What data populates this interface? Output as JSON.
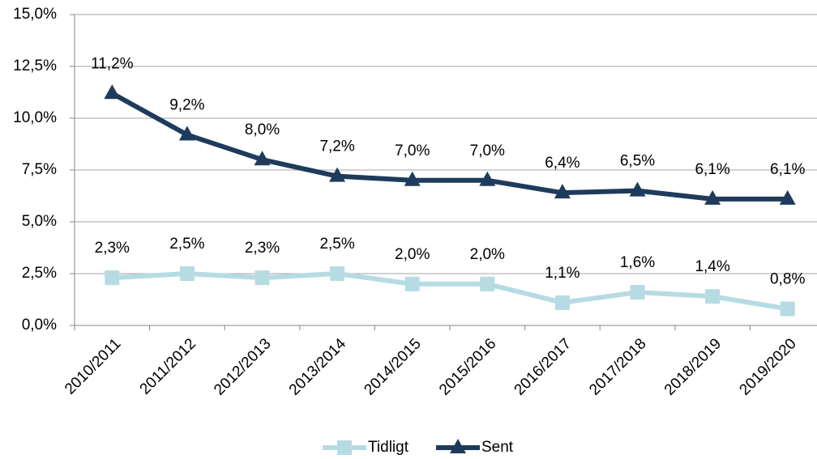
{
  "chart_data": {
    "type": "line",
    "categories": [
      "2010/2011",
      "2011/2012",
      "2012/2013",
      "2013/2014",
      "2014/2015",
      "2015/2016",
      "2016/2017",
      "2017/2018",
      "2018/2019",
      "2019/2020"
    ],
    "series": [
      {
        "name": "Tidligt",
        "color": "#b7dbe3",
        "marker": "square",
        "values": [
          2.3,
          2.5,
          2.3,
          2.5,
          2.0,
          2.0,
          1.1,
          1.6,
          1.4,
          0.8
        ],
        "value_labels": [
          "2,3%",
          "2,5%",
          "2,3%",
          "2,5%",
          "2,0%",
          "2,0%",
          "1,1%",
          "1,6%",
          "1,4%",
          "0,8%"
        ]
      },
      {
        "name": "Sent",
        "color": "#1f3b5c",
        "marker": "triangle",
        "values": [
          11.2,
          9.2,
          8.0,
          7.2,
          7.0,
          7.0,
          6.4,
          6.5,
          6.1,
          6.1
        ],
        "value_labels": [
          "11,2%",
          "9,2%",
          "8,0%",
          "7,2%",
          "7,0%",
          "7,0%",
          "6,4%",
          "6,5%",
          "6,1%",
          "6,1%"
        ]
      }
    ],
    "ylim": [
      0,
      15
    ],
    "yticks": [
      {
        "value": 0,
        "label": "0,0%"
      },
      {
        "value": 2.5,
        "label": "2,5%"
      },
      {
        "value": 5,
        "label": "5,0%"
      },
      {
        "value": 7.5,
        "label": "7,5%"
      },
      {
        "value": 10,
        "label": "10,0%"
      },
      {
        "value": 12.5,
        "label": "12,5%"
      },
      {
        "value": 15,
        "label": "15,0%"
      }
    ],
    "grid": true,
    "legend": "bottom"
  }
}
